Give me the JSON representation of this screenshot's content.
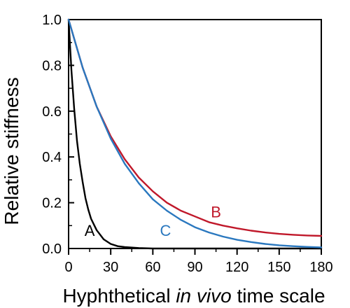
{
  "chart_data": {
    "type": "line",
    "title": "",
    "xlabel_prefix": "Hyphthetical ",
    "xlabel_italic": "in vivo",
    "xlabel_suffix": " time scale",
    "ylabel": "Relative  stiffness",
    "xlim": [
      0,
      180
    ],
    "ylim": [
      0,
      1.0
    ],
    "x_ticks": [
      0,
      30,
      60,
      90,
      120,
      150,
      180
    ],
    "x_tick_labels": [
      "0",
      "30",
      "60",
      "90",
      "120",
      "150",
      "180"
    ],
    "y_ticks": [
      0.0,
      0.2,
      0.4,
      0.6,
      0.8,
      1.0
    ],
    "y_tick_labels": [
      "0.0",
      "0.2",
      "0.4",
      "0.6",
      "0.8",
      "1.0"
    ],
    "grid": false,
    "legend": "none",
    "series": [
      {
        "name": "A",
        "color": "#000000",
        "x": [
          0,
          2,
          4,
          6,
          8,
          10,
          12,
          14,
          16,
          18,
          20,
          25,
          30,
          35,
          40,
          50,
          60,
          70,
          90,
          120,
          180
        ],
        "y": [
          1.0,
          0.78,
          0.61,
          0.47,
          0.37,
          0.29,
          0.22,
          0.17,
          0.13,
          0.105,
          0.08,
          0.04,
          0.02,
          0.01,
          0.006,
          0.002,
          0.0,
          0.0,
          0.0,
          0.0,
          0.0
        ]
      },
      {
        "name": "B",
        "color": "#c0182a",
        "x": [
          0,
          10,
          20,
          30,
          40,
          50,
          60,
          70,
          80,
          90,
          100,
          110,
          120,
          130,
          140,
          150,
          160,
          170,
          180
        ],
        "y": [
          1.0,
          0.79,
          0.62,
          0.49,
          0.39,
          0.31,
          0.25,
          0.2,
          0.165,
          0.14,
          0.115,
          0.1,
          0.088,
          0.078,
          0.07,
          0.064,
          0.06,
          0.057,
          0.055
        ]
      },
      {
        "name": "C",
        "color": "#2a78bf",
        "x": [
          0,
          10,
          20,
          30,
          40,
          50,
          60,
          70,
          80,
          90,
          100,
          110,
          120,
          130,
          140,
          150,
          160,
          170,
          180
        ],
        "y": [
          1.0,
          0.79,
          0.62,
          0.48,
          0.37,
          0.285,
          0.215,
          0.165,
          0.125,
          0.093,
          0.07,
          0.052,
          0.038,
          0.028,
          0.02,
          0.014,
          0.01,
          0.007,
          0.005
        ]
      }
    ],
    "annotations": [
      {
        "text": "A",
        "series": "A",
        "x": 15,
        "y": 0.08,
        "color": "#000000"
      },
      {
        "text": "B",
        "series": "B",
        "x": 105,
        "y": 0.16,
        "color": "#c0182a"
      },
      {
        "text": "C",
        "series": "C",
        "x": 69,
        "y": 0.08,
        "color": "#2a78bf"
      }
    ]
  }
}
